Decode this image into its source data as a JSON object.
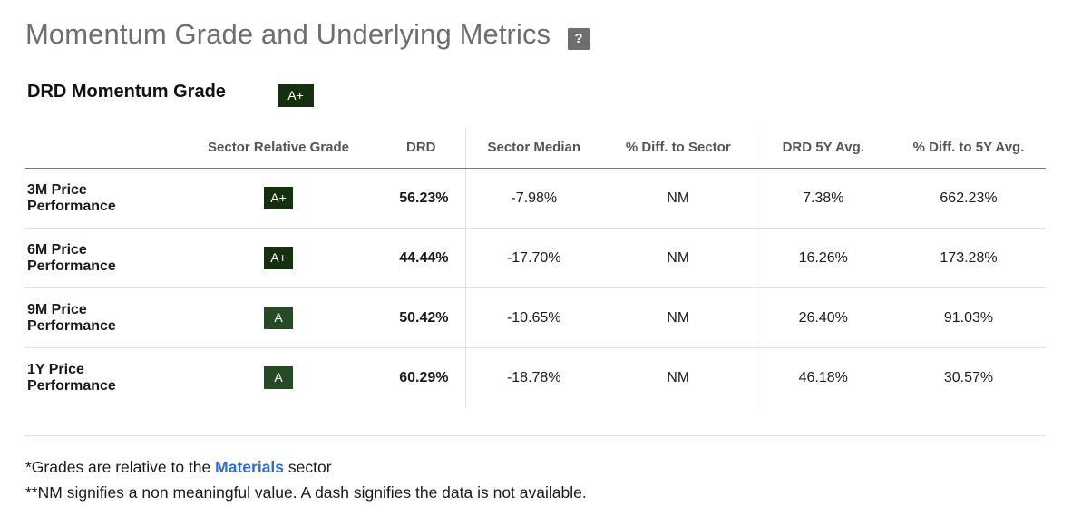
{
  "header": {
    "title": "Momentum Grade and Underlying Metrics",
    "help_label": "?"
  },
  "grade_section": {
    "heading": "DRD Momentum Grade",
    "grade": "A+"
  },
  "table": {
    "columns": [
      "",
      "Sector Relative Grade",
      "DRD",
      "Sector Median",
      "% Diff. to Sector",
      "DRD 5Y Avg.",
      "% Diff. to 5Y Avg."
    ],
    "rows": [
      {
        "label_line1": "3M Price",
        "label_line2": "Performance",
        "grade": "A+",
        "drd": "56.23%",
        "sector_median": "-7.98%",
        "diff_sector": "NM",
        "avg_5y": "7.38%",
        "diff_5y": "662.23%"
      },
      {
        "label_line1": "6M Price",
        "label_line2": "Performance",
        "grade": "A+",
        "drd": "44.44%",
        "sector_median": "-17.70%",
        "diff_sector": "NM",
        "avg_5y": "16.26%",
        "diff_5y": "173.28%"
      },
      {
        "label_line1": "9M Price",
        "label_line2": "Performance",
        "grade": "A",
        "drd": "50.42%",
        "sector_median": "-10.65%",
        "diff_sector": "NM",
        "avg_5y": "26.40%",
        "diff_5y": "91.03%"
      },
      {
        "label_line1": "1Y Price",
        "label_line2": "Performance",
        "grade": "A",
        "drd": "60.29%",
        "sector_median": "-18.78%",
        "diff_sector": "NM",
        "avg_5y": "46.18%",
        "diff_5y": "30.57%"
      }
    ]
  },
  "footnotes": {
    "line1_prefix": "*Grades are relative to the ",
    "line1_link": "Materials",
    "line1_suffix": " sector",
    "line2": "**NM signifies a non meaningful value. A dash signifies the data is not available."
  },
  "colors": {
    "grade_a_plus": "#15300f",
    "grade_a": "#254a25",
    "link": "#2f6cd8"
  }
}
